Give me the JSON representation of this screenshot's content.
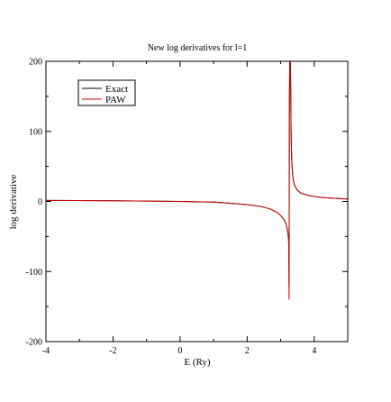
{
  "chart_data": {
    "type": "line",
    "title": "New log derivatives for l=1",
    "xlabel": "E (Ry)",
    "ylabel": "log derivative",
    "xlim": [
      -4,
      5
    ],
    "ylim": [
      -200,
      200
    ],
    "xticks": [
      -4,
      -2,
      0,
      2,
      4
    ],
    "yticks": [
      -200,
      -100,
      0,
      100,
      200
    ],
    "xtick_labels": [
      "-4",
      "-2",
      "0",
      "2",
      "4"
    ],
    "ytick_labels": [
      "-200",
      "-100",
      "0",
      "100",
      "200"
    ],
    "legend_position": "top-left",
    "grid": false,
    "series": [
      {
        "name": "Exact",
        "color": "#000000",
        "x": [
          -4.0,
          -3.0,
          -2.0,
          -1.0,
          0.0,
          0.5,
          1.0,
          1.5,
          2.0,
          2.4,
          2.7,
          2.9,
          3.0,
          3.1,
          3.15,
          3.2,
          3.22,
          3.24,
          3.25,
          3.26,
          3.27,
          3.28,
          3.29,
          3.3,
          3.31,
          3.32,
          3.33,
          3.34,
          3.36,
          3.38,
          3.42,
          3.5,
          3.6,
          3.8,
          4.0,
          4.3,
          4.6,
          5.0
        ],
        "y": [
          1.5,
          1.3,
          1.0,
          0.5,
          0.0,
          -0.5,
          -1.0,
          -2.5,
          -4.5,
          -7.0,
          -11.0,
          -16.0,
          -20.0,
          -26.0,
          -31.0,
          -40.0,
          -46.0,
          -55.0,
          -120.0,
          150.0,
          200.0,
          200.0,
          200.0,
          160.0,
          105.0,
          78.0,
          60.0,
          50.0,
          37.0,
          30.0,
          22.0,
          16.0,
          12.0,
          9.0,
          7.0,
          5.5,
          4.5,
          3.5
        ]
      },
      {
        "name": "PAW",
        "color": "#cc0000",
        "x": [
          -4.0,
          -3.0,
          -2.0,
          -1.0,
          0.0,
          0.5,
          1.0,
          1.5,
          2.0,
          2.4,
          2.7,
          2.9,
          3.0,
          3.1,
          3.15,
          3.2,
          3.22,
          3.24,
          3.25,
          3.255,
          3.26,
          3.27,
          3.28,
          3.29,
          3.3,
          3.31,
          3.32,
          3.33,
          3.34,
          3.36,
          3.38,
          3.42,
          3.5,
          3.6,
          3.8,
          4.0,
          4.3,
          4.6,
          5.0
        ],
        "y": [
          1.5,
          1.3,
          1.0,
          0.5,
          0.0,
          -0.5,
          -1.0,
          -2.5,
          -4.5,
          -7.0,
          -11.0,
          -16.0,
          -20.0,
          -26.0,
          -31.0,
          -40.0,
          -47.0,
          -60.0,
          -140.0,
          -55.0,
          130.0,
          200.0,
          200.0,
          200.0,
          160.0,
          105.0,
          78.0,
          60.0,
          50.0,
          37.0,
          30.0,
          22.0,
          16.0,
          12.0,
          9.0,
          7.0,
          5.5,
          4.5,
          3.5
        ]
      }
    ]
  }
}
